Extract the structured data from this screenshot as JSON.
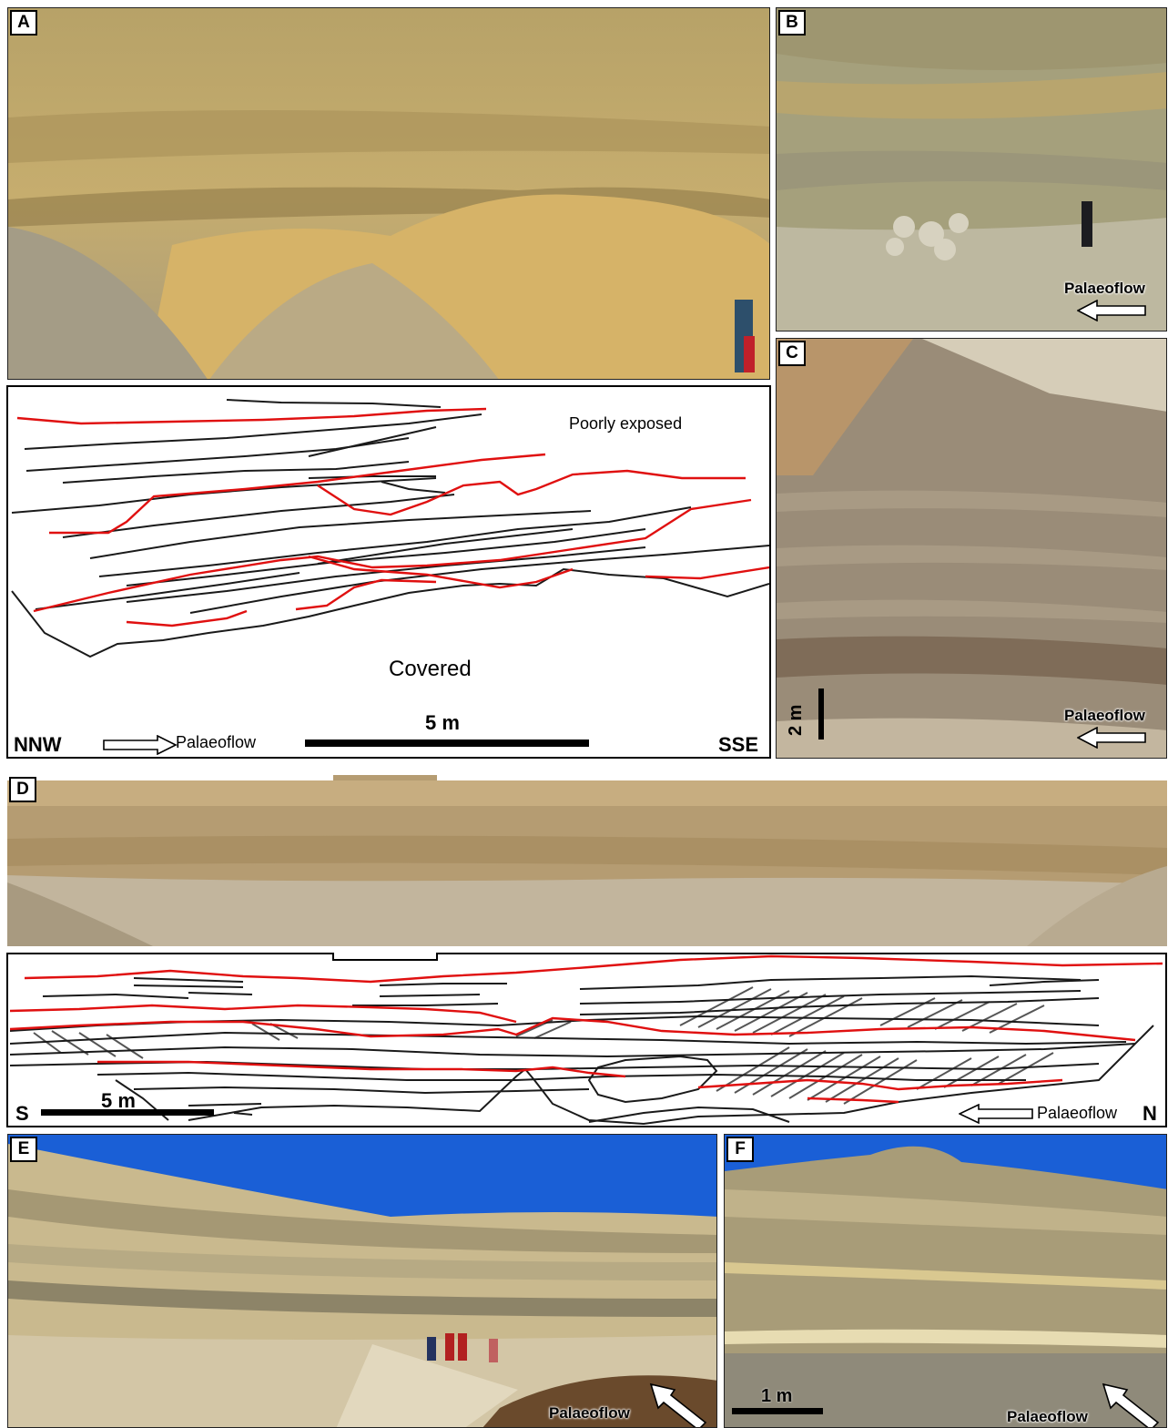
{
  "panels": {
    "A": {
      "letter": "A",
      "sketch_labels": {
        "poorly_exposed": "Poorly exposed",
        "covered": "Covered",
        "left_dir": "NNW",
        "right_dir": "SSE",
        "flow": "Palaeoflow",
        "scale": "5 m"
      }
    },
    "B": {
      "letter": "B",
      "flow": "Palaeoflow"
    },
    "C": {
      "letter": "C",
      "flow": "Palaeoflow",
      "scale": "2 m"
    },
    "D": {
      "letter": "D",
      "sketch_labels": {
        "left_dir": "S",
        "right_dir": "N",
        "flow": "Palaeoflow",
        "scale": "5 m"
      }
    },
    "E": {
      "letter": "E",
      "flow": "Palaeoflow"
    },
    "F": {
      "letter": "F",
      "flow": "Palaeoflow",
      "scale": "1 m"
    }
  },
  "colors": {
    "bounding_surface": "#e01010",
    "bedding": "#1a1a1a",
    "foreset": "#555555",
    "sand": "#c9b27a",
    "sky": "#1a5fd6"
  }
}
